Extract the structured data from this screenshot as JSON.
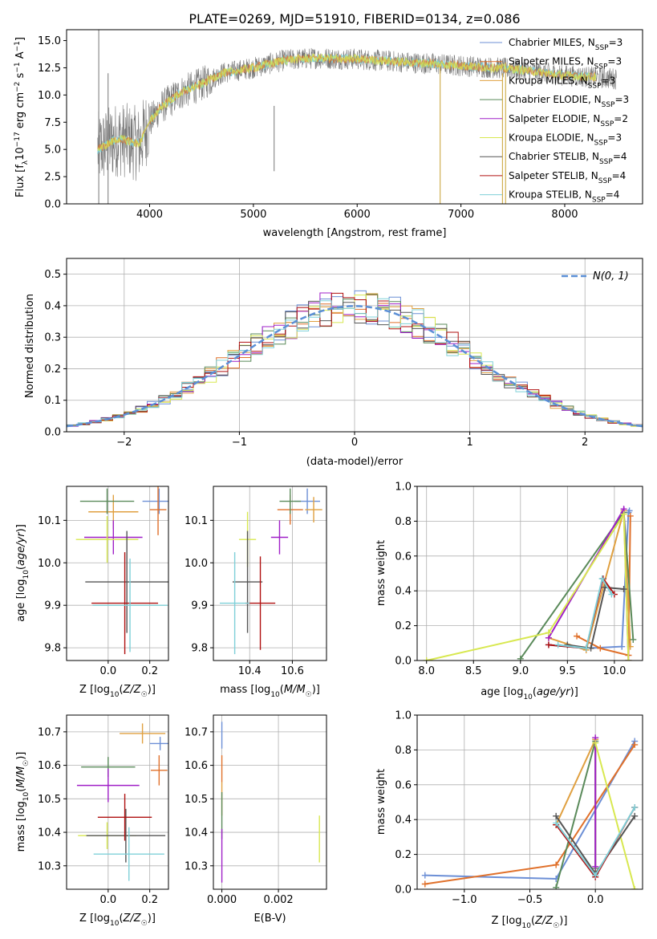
{
  "figure": {
    "title": "PLATE=0269, MJD=51910, FIBERID=0134, z=0.086"
  },
  "colors": {
    "series": [
      "#6c8fd6",
      "#e0702a",
      "#e0a040",
      "#5a8a5a",
      "#a020c8",
      "#d8e850",
      "#555555",
      "#b01010",
      "#7fd0d8"
    ],
    "data_spectrum": "#777777",
    "normal_curve": "#5b8fd6",
    "grid": "#b0b0b0"
  },
  "chart_data": [
    {
      "id": "spectrum",
      "type": "line",
      "xlabel": "wavelength [Angstrom, rest frame]",
      "ylabel": "Flux [f_λ10^-17 erg cm^-2 s^-1 A^-1]",
      "xlim": [
        3200,
        8750
      ],
      "ylim": [
        0,
        16
      ],
      "xticks": [
        4000,
        5000,
        6000,
        7000,
        8000
      ],
      "yticks": [
        0.0,
        2.5,
        5.0,
        7.5,
        10.0,
        12.5,
        15.0
      ],
      "legend_position": "top-right",
      "legend": [
        {
          "label": "Chabrier MILES, N",
          "sub": "SSP",
          "suffix": "=3"
        },
        {
          "label": "Salpeter MILES, N",
          "sub": "SSP",
          "suffix": "=3"
        },
        {
          "label": "Kroupa MILES, N",
          "sub": "SSP",
          "suffix": "=3"
        },
        {
          "label": "Chabrier ELODIE, N",
          "sub": "SSP",
          "suffix": "=3"
        },
        {
          "label": "Salpeter ELODIE, N",
          "sub": "SSP",
          "suffix": "=2"
        },
        {
          "label": "Kroupa ELODIE, N",
          "sub": "SSP",
          "suffix": "=3"
        },
        {
          "label": "Chabrier STELIB, N",
          "sub": "SSP",
          "suffix": "=4"
        },
        {
          "label": "Salpeter STELIB, N",
          "sub": "SSP",
          "suffix": "=4"
        },
        {
          "label": "Kroupa STELIB, N",
          "sub": "SSP",
          "suffix": "=4"
        }
      ],
      "continuum_x": [
        3500,
        3700,
        3900,
        4000,
        4100,
        4300,
        4500,
        4700,
        5000,
        5300,
        5600,
        6000,
        6500,
        7000,
        7500,
        8000,
        8500
      ],
      "continuum_y": [
        5.0,
        6.0,
        5.5,
        7.5,
        8.8,
        10.2,
        11.0,
        12.0,
        12.5,
        13.2,
        13.4,
        13.3,
        13.0,
        12.7,
        12.4,
        11.8,
        11.5
      ]
    },
    {
      "id": "residuals",
      "type": "histogram",
      "xlabel": "(data-model)/error",
      "ylabel": "Normed distribution",
      "xlim": [
        -2.5,
        2.5
      ],
      "ylim": [
        0,
        0.55
      ],
      "xticks": [
        -2,
        -1,
        0,
        1,
        2
      ],
      "xticklabels": [
        "−2",
        "−1",
        "0",
        "1",
        "2"
      ],
      "yticks": [
        0.0,
        0.1,
        0.2,
        0.3,
        0.4,
        0.5
      ],
      "legend_label": "N(0, 1)",
      "legend_position": "top-right"
    },
    {
      "id": "age_vs_Z",
      "type": "errorbar",
      "xlabel": "Z [log10(Z/Z☉)]",
      "ylabel": "age [log10(age/yr)]",
      "xlim": [
        -0.2,
        0.29
      ],
      "ylim": [
        9.77,
        10.18
      ],
      "xticks": [
        0.0,
        0.2
      ],
      "yticks": [
        9.8,
        9.9,
        10.0,
        10.1
      ],
      "points": [
        {
          "x": 0.245,
          "y": 10.145,
          "xerr": 0.08,
          "yerr": 0.03
        },
        {
          "x": 0.24,
          "y": 10.125,
          "xerr": 0.04,
          "yerr": 0.06
        },
        {
          "x": 0.025,
          "y": 10.12,
          "xerr": 0.12,
          "yerr": 0.04
        },
        {
          "x": -0.005,
          "y": 10.145,
          "xerr": 0.13,
          "yerr": 0.03
        },
        {
          "x": 0.025,
          "y": 10.06,
          "xerr": 0.14,
          "yerr": 0.04
        },
        {
          "x": -0.005,
          "y": 10.055,
          "xerr": 0.15,
          "yerr": 0.055
        },
        {
          "x": 0.09,
          "y": 9.955,
          "xerr": 0.2,
          "yerr": 0.12
        },
        {
          "x": 0.08,
          "y": 9.905,
          "xerr": 0.16,
          "yerr": 0.12
        },
        {
          "x": 0.105,
          "y": 9.9,
          "xerr": 0.18,
          "yerr": 0.11
        }
      ]
    },
    {
      "id": "age_vs_mass",
      "type": "errorbar",
      "xlabel": "mass [log10(M/M☉)]",
      "ylabel": "",
      "xlim": [
        10.23,
        10.76
      ],
      "ylim": [
        9.77,
        10.18
      ],
      "xticks": [
        10.4,
        10.6
      ],
      "yticks": [
        9.8,
        9.9,
        10.0,
        10.1
      ],
      "points": [
        {
          "x": 10.67,
          "y": 10.145,
          "xerr": 0.06,
          "yerr": 0.03
        },
        {
          "x": 10.59,
          "y": 10.125,
          "xerr": 0.06,
          "yerr": 0.035
        },
        {
          "x": 10.7,
          "y": 10.125,
          "xerr": 0.04,
          "yerr": 0.03
        },
        {
          "x": 10.59,
          "y": 10.145,
          "xerr": 0.05,
          "yerr": 0.03
        },
        {
          "x": 10.54,
          "y": 10.06,
          "xerr": 0.04,
          "yerr": 0.04
        },
        {
          "x": 10.39,
          "y": 10.055,
          "xerr": 0.04,
          "yerr": 0.065
        },
        {
          "x": 10.39,
          "y": 9.955,
          "xerr": 0.07,
          "yerr": 0.12
        },
        {
          "x": 10.45,
          "y": 9.905,
          "xerr": 0.07,
          "yerr": 0.11
        },
        {
          "x": 10.33,
          "y": 9.905,
          "xerr": 0.07,
          "yerr": 0.12
        }
      ]
    },
    {
      "id": "mass_weight_vs_age",
      "type": "line",
      "xlabel": "age [log10(age/yr)]",
      "ylabel": "mass weight",
      "xlim": [
        7.9,
        10.3
      ],
      "ylim": [
        0.0,
        1.0
      ],
      "xticks": [
        8.0,
        8.5,
        9.0,
        9.5,
        10.0
      ],
      "yticks": [
        0.0,
        0.2,
        0.4,
        0.6,
        0.8,
        1.0
      ],
      "series": [
        {
          "x": [
            9.3,
            9.7,
            10.08,
            10.15,
            10.16
          ],
          "y": [
            0.09,
            0.07,
            0.08,
            0.85,
            0.86
          ]
        },
        {
          "x": [
            9.6,
            9.85,
            10.15,
            10.17
          ],
          "y": [
            0.14,
            0.07,
            0.03,
            0.83
          ]
        },
        {
          "x": [
            9.3,
            9.7,
            10.1,
            10.17
          ],
          "y": [
            0.13,
            0.06,
            0.86,
            0.08
          ]
        },
        {
          "x": [
            9.0,
            10.1,
            10.2
          ],
          "y": [
            0.01,
            0.85,
            0.12
          ]
        },
        {
          "x": [
            9.3,
            10.1,
            10.15
          ],
          "y": [
            0.13,
            0.87,
            0.0
          ]
        },
        {
          "x": [
            8.0,
            9.3,
            10.1,
            10.15
          ],
          "y": [
            0.0,
            0.16,
            0.84,
            0.0
          ]
        },
        {
          "x": [
            9.5,
            9.75,
            9.9,
            10.1
          ],
          "y": [
            0.09,
            0.07,
            0.42,
            0.41
          ]
        },
        {
          "x": [
            9.3,
            9.7,
            9.88,
            10.0
          ],
          "y": [
            0.09,
            0.07,
            0.47,
            0.38
          ]
        },
        {
          "x": [
            9.4,
            9.7,
            9.87,
            9.97
          ],
          "y": [
            0.09,
            0.07,
            0.47,
            0.38
          ]
        }
      ]
    },
    {
      "id": "mass_vs_Z",
      "type": "errorbar",
      "xlabel": "Z [log10(Z/Z☉)]",
      "ylabel": "mass [log10(M/M☉)]",
      "xlim": [
        -0.2,
        0.29
      ],
      "ylim": [
        10.23,
        10.75
      ],
      "xticks": [
        0.0,
        0.2
      ],
      "yticks": [
        10.3,
        10.4,
        10.5,
        10.6,
        10.7
      ],
      "points": [
        {
          "x": 0.25,
          "y": 10.665,
          "xerr": 0.05,
          "yerr": 0.02
        },
        {
          "x": 0.245,
          "y": 10.585,
          "xerr": 0.04,
          "yerr": 0.045
        },
        {
          "x": 0.165,
          "y": 10.695,
          "xerr": 0.11,
          "yerr": 0.03
        },
        {
          "x": 0.0,
          "y": 10.595,
          "xerr": 0.13,
          "yerr": 0.03
        },
        {
          "x": 0.0,
          "y": 10.54,
          "xerr": 0.15,
          "yerr": 0.05
        },
        {
          "x": -0.005,
          "y": 10.39,
          "xerr": 0.14,
          "yerr": 0.04
        },
        {
          "x": 0.085,
          "y": 10.39,
          "xerr": 0.19,
          "yerr": 0.08
        },
        {
          "x": 0.08,
          "y": 10.445,
          "xerr": 0.13,
          "yerr": 0.07
        },
        {
          "x": 0.1,
          "y": 10.335,
          "xerr": 0.17,
          "yerr": 0.08
        }
      ]
    },
    {
      "id": "mass_vs_EBV",
      "type": "errorbar",
      "xlabel": "E(B-V)",
      "ylabel": "",
      "xlim": [
        -0.0003,
        0.0037
      ],
      "ylim": [
        10.23,
        10.75
      ],
      "xticks": [
        0.0,
        0.002
      ],
      "xticklabels": [
        "0.000",
        "0.002"
      ],
      "yticks": [
        10.3,
        10.4,
        10.5,
        10.6,
        10.7
      ],
      "points": [
        {
          "x": 0.0,
          "y": 10.69,
          "xerr": 0.0,
          "yerr": 0.04
        },
        {
          "x": 0.0,
          "y": 10.59,
          "xerr": 0.0,
          "yerr": 0.04
        },
        {
          "x": 0.0,
          "y": 10.5,
          "xerr": 0.0,
          "yerr": 0.05
        },
        {
          "x": 0.0,
          "y": 10.45,
          "xerr": 0.0,
          "yerr": 0.07
        },
        {
          "x": 0.0,
          "y": 10.33,
          "xerr": 0.0,
          "yerr": 0.08
        },
        {
          "x": 0.00345,
          "y": 10.38,
          "xerr": 0.0,
          "yerr": 0.07
        }
      ]
    },
    {
      "id": "mass_weight_vs_Z",
      "type": "line",
      "xlabel": "Z [log10(Z/Z☉)]",
      "ylabel": "mass weight",
      "xlim": [
        -1.36,
        0.36
      ],
      "ylim": [
        0.0,
        1.0
      ],
      "xticks": [
        -1.0,
        -0.5,
        0.0
      ],
      "xticklabels": [
        "−1.0",
        "−0.5",
        "0.0"
      ],
      "yticks": [
        0.0,
        0.2,
        0.4,
        0.6,
        0.8,
        1.0
      ],
      "series": [
        {
          "x": [
            -1.3,
            -0.3,
            0.3
          ],
          "y": [
            0.08,
            0.06,
            0.85
          ]
        },
        {
          "x": [
            -1.3,
            -0.3,
            0.3
          ],
          "y": [
            0.03,
            0.14,
            0.83
          ]
        },
        {
          "x": [
            -0.3,
            0.0,
            0.0
          ],
          "y": [
            0.37,
            0.86,
            0.08
          ]
        },
        {
          "x": [
            -0.3,
            0.0,
            0.0
          ],
          "y": [
            0.01,
            0.85,
            0.12
          ]
        },
        {
          "x": [
            0.0,
            0.0
          ],
          "y": [
            0.87,
            0.13
          ]
        },
        {
          "x": [
            0.0,
            0.3
          ],
          "y": [
            0.84,
            0.0
          ]
        },
        {
          "x": [
            -0.3,
            0.0,
            0.3
          ],
          "y": [
            0.42,
            0.09,
            0.42
          ]
        },
        {
          "x": [
            -0.3,
            0.0,
            0.3
          ],
          "y": [
            0.37,
            0.07,
            0.47
          ]
        },
        {
          "x": [
            -0.3,
            0.0,
            0.3
          ],
          "y": [
            0.38,
            0.08,
            0.47
          ]
        }
      ]
    }
  ]
}
